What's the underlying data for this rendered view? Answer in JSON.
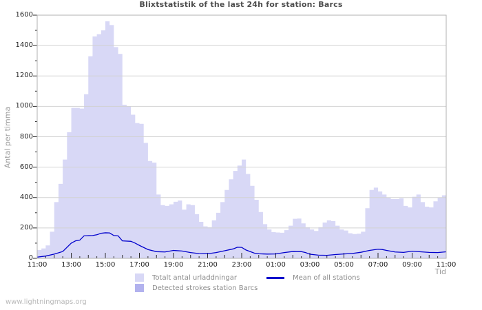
{
  "title": "Blixtstatistik of the last 24h for station: Barcs",
  "watermark": "www.lightningmaps.org",
  "chart_data": {
    "type": "area",
    "title": "Blixtstatistik of the last 24h for station: Barcs",
    "xlabel": "Tid",
    "ylabel": "Antal per timma",
    "ylim": [
      0,
      1600
    ],
    "y_tick_step": 200,
    "y_minor_tick_step": 100,
    "x_span_hours": 24,
    "x_tick_labels": [
      "11:00",
      "13:00",
      "15:00",
      "17:00",
      "19:00",
      "21:00",
      "23:00",
      "01:00",
      "03:00",
      "05:00",
      "07:00",
      "09:00",
      "11:00"
    ],
    "x_label_every_hours": 2,
    "grid": "horizontal-only",
    "legend_position": "bottom",
    "colors": {
      "total_area": "#d8d8f6",
      "station_area": "#b2b2ee",
      "mean_line": "#0000cc",
      "gridline": "#d2d2d2",
      "plot_border": "#b0b0b0",
      "tick": "#2a2a2a"
    },
    "series": [
      {
        "name": "Totalt antal urladdningar",
        "type": "area",
        "render": "step",
        "color": "#d8d8f6",
        "points": [
          [
            0,
            55
          ],
          [
            0.25,
            65
          ],
          [
            0.5,
            85
          ],
          [
            0.75,
            175
          ],
          [
            1,
            370
          ],
          [
            1.25,
            490
          ],
          [
            1.5,
            650
          ],
          [
            1.75,
            830
          ],
          [
            2,
            990
          ],
          [
            2.25,
            990
          ],
          [
            2.5,
            985
          ],
          [
            2.75,
            1080
          ],
          [
            3,
            1330
          ],
          [
            3.25,
            1460
          ],
          [
            3.5,
            1475
          ],
          [
            3.75,
            1500
          ],
          [
            4,
            1560
          ],
          [
            4.25,
            1535
          ],
          [
            4.5,
            1390
          ],
          [
            4.75,
            1345
          ],
          [
            5,
            1010
          ],
          [
            5.25,
            1000
          ],
          [
            5.5,
            945
          ],
          [
            5.75,
            890
          ],
          [
            6,
            885
          ],
          [
            6.25,
            760
          ],
          [
            6.5,
            640
          ],
          [
            6.75,
            630
          ],
          [
            7,
            420
          ],
          [
            7.25,
            350
          ],
          [
            7.5,
            345
          ],
          [
            7.75,
            355
          ],
          [
            8,
            372
          ],
          [
            8.25,
            380
          ],
          [
            8.5,
            320
          ],
          [
            8.75,
            355
          ],
          [
            9,
            350
          ],
          [
            9.25,
            290
          ],
          [
            9.5,
            240
          ],
          [
            9.75,
            210
          ],
          [
            10,
            205
          ],
          [
            10.25,
            250
          ],
          [
            10.5,
            300
          ],
          [
            10.75,
            370
          ],
          [
            11,
            450
          ],
          [
            11.25,
            520
          ],
          [
            11.5,
            575
          ],
          [
            11.75,
            610
          ],
          [
            12,
            650
          ],
          [
            12.25,
            555
          ],
          [
            12.5,
            477
          ],
          [
            12.75,
            385
          ],
          [
            13,
            305
          ],
          [
            13.25,
            225
          ],
          [
            13.5,
            190
          ],
          [
            13.75,
            172
          ],
          [
            14,
            170
          ],
          [
            14.25,
            168
          ],
          [
            14.5,
            185
          ],
          [
            14.75,
            215
          ],
          [
            15,
            260
          ],
          [
            15.25,
            262
          ],
          [
            15.5,
            230
          ],
          [
            15.75,
            205
          ],
          [
            16,
            190
          ],
          [
            16.25,
            180
          ],
          [
            16.5,
            205
          ],
          [
            16.75,
            235
          ],
          [
            17,
            250
          ],
          [
            17.25,
            245
          ],
          [
            17.5,
            215
          ],
          [
            17.75,
            190
          ],
          [
            18,
            183
          ],
          [
            18.25,
            165
          ],
          [
            18.5,
            160
          ],
          [
            18.75,
            162
          ],
          [
            19,
            175
          ],
          [
            19.25,
            330
          ],
          [
            19.5,
            450
          ],
          [
            19.75,
            465
          ],
          [
            20,
            440
          ],
          [
            20.25,
            420
          ],
          [
            20.5,
            400
          ],
          [
            20.75,
            390
          ],
          [
            21,
            390
          ],
          [
            21.25,
            395
          ],
          [
            21.5,
            345
          ],
          [
            21.75,
            335
          ],
          [
            22,
            405
          ],
          [
            22.25,
            420
          ],
          [
            22.5,
            370
          ],
          [
            22.75,
            340
          ],
          [
            23,
            335
          ],
          [
            23.25,
            375
          ],
          [
            23.5,
            400
          ],
          [
            23.75,
            415
          ],
          [
            24,
            435
          ]
        ]
      },
      {
        "name": "Detected strokes station Barcs",
        "type": "area",
        "render": "step",
        "color": "#b2b2ee",
        "points": [
          [
            0,
            0
          ],
          [
            24,
            0
          ]
        ]
      },
      {
        "name": "Mean of all stations",
        "type": "line",
        "render": "linear",
        "color": "#0000cc",
        "points": [
          [
            0,
            8
          ],
          [
            0.5,
            15
          ],
          [
            1,
            28
          ],
          [
            1.5,
            45
          ],
          [
            2,
            100
          ],
          [
            2.25,
            115
          ],
          [
            2.5,
            120
          ],
          [
            2.75,
            148
          ],
          [
            3.25,
            150
          ],
          [
            3.5,
            155
          ],
          [
            3.75,
            165
          ],
          [
            4,
            168
          ],
          [
            4.25,
            167
          ],
          [
            4.5,
            150
          ],
          [
            4.75,
            148
          ],
          [
            5,
            115
          ],
          [
            5.5,
            112
          ],
          [
            5.75,
            100
          ],
          [
            6,
            85
          ],
          [
            6.5,
            58
          ],
          [
            7,
            44
          ],
          [
            7.5,
            42
          ],
          [
            8,
            52
          ],
          [
            8.5,
            48
          ],
          [
            9,
            38
          ],
          [
            9.5,
            31
          ],
          [
            10,
            30
          ],
          [
            10.5,
            38
          ],
          [
            11,
            50
          ],
          [
            11.5,
            62
          ],
          [
            11.75,
            73
          ],
          [
            12,
            72
          ],
          [
            12.25,
            55
          ],
          [
            12.75,
            34
          ],
          [
            13,
            30
          ],
          [
            13.5,
            28
          ],
          [
            14,
            29
          ],
          [
            14.5,
            38
          ],
          [
            15,
            45
          ],
          [
            15.5,
            44
          ],
          [
            15.75,
            38
          ],
          [
            16,
            27
          ],
          [
            16.5,
            21
          ],
          [
            17,
            20
          ],
          [
            17.5,
            25
          ],
          [
            18,
            29
          ],
          [
            18.5,
            32
          ],
          [
            19,
            40
          ],
          [
            19.5,
            52
          ],
          [
            20,
            60
          ],
          [
            20.25,
            58
          ],
          [
            20.5,
            52
          ],
          [
            21,
            42
          ],
          [
            21.5,
            39
          ],
          [
            22,
            47
          ],
          [
            22.5,
            43
          ],
          [
            23,
            39
          ],
          [
            23.5,
            38
          ],
          [
            24,
            43
          ]
        ]
      }
    ]
  }
}
